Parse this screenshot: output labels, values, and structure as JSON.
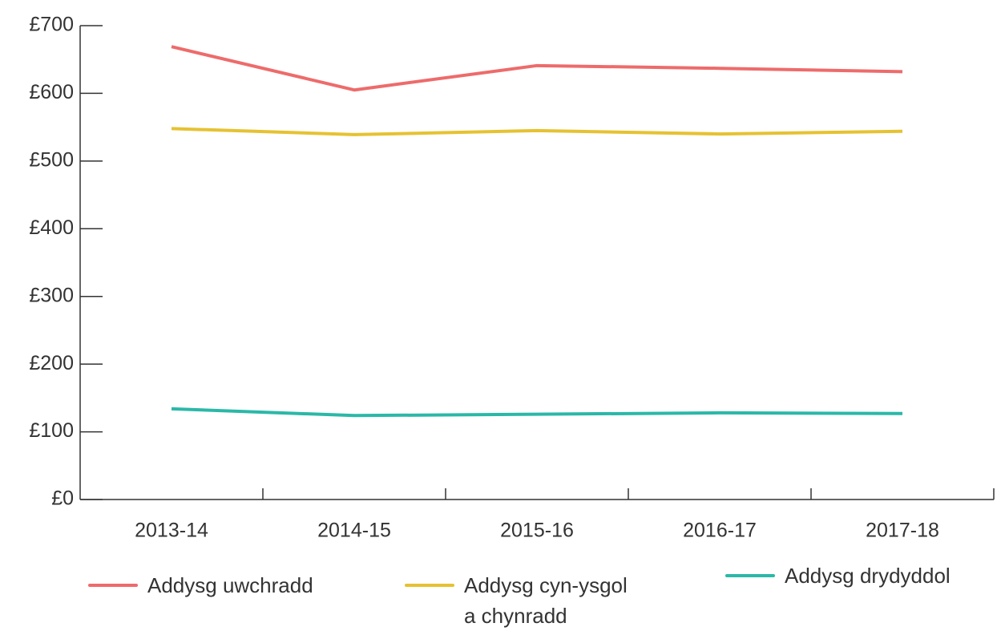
{
  "chart_data": {
    "type": "line",
    "categories": [
      "2013-14",
      "2014-15",
      "2015-16",
      "2016-17",
      "2017-18"
    ],
    "series": [
      {
        "name": "Addysg uwchradd",
        "color": "#ee6b6b",
        "values": [
          669,
          605,
          641,
          637,
          632
        ]
      },
      {
        "name": "Addysg cyn-ysgol a chynradd",
        "color": "#e6c232",
        "values": [
          548,
          539,
          545,
          540,
          544
        ]
      },
      {
        "name": "Addysg drydyddol",
        "color": "#2bb8a8",
        "values": [
          134,
          124,
          126,
          128,
          127
        ]
      }
    ],
    "ylim": [
      0,
      700
    ],
    "yticks": [
      {
        "value": 0,
        "label": "£0"
      },
      {
        "value": 100,
        "label": "£100"
      },
      {
        "value": 200,
        "label": "£200"
      },
      {
        "value": 300,
        "label": "£300"
      },
      {
        "value": 400,
        "label": "£400"
      },
      {
        "value": 500,
        "label": "£500"
      },
      {
        "value": 600,
        "label": "£600"
      },
      {
        "value": 700,
        "label": "£700"
      }
    ],
    "grid": false
  }
}
